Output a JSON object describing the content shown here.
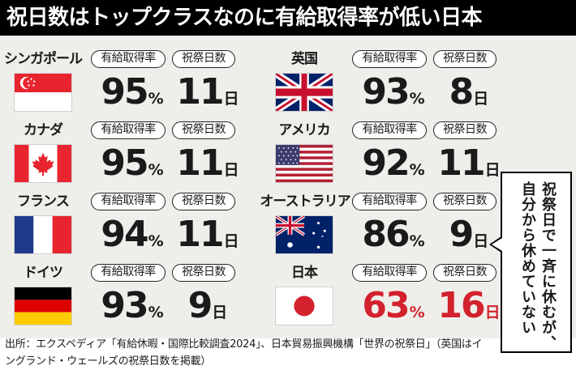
{
  "title": "祝日数はトップクラスなのに有給取得率が低い日本",
  "labels": {
    "rate": "有給取得率",
    "days": "祝祭日数",
    "rate_unit": "%",
    "days_unit": "日"
  },
  "countries": [
    {
      "name": "シンガポール",
      "flag": "singapore-flag-icon",
      "rate": "95",
      "days": "11"
    },
    {
      "name": "英国",
      "flag": "uk-flag-icon",
      "rate": "93",
      "days": "8"
    },
    {
      "name": "カナダ",
      "flag": "canada-flag-icon",
      "rate": "95",
      "days": "11"
    },
    {
      "name": "アメリカ",
      "flag": "usa-flag-icon",
      "rate": "92",
      "days": "11"
    },
    {
      "name": "フランス",
      "flag": "france-flag-icon",
      "rate": "94",
      "days": "11"
    },
    {
      "name": "オーストラリア",
      "flag": "australia-flag-icon",
      "rate": "86",
      "days": "9"
    },
    {
      "name": "ドイツ",
      "flag": "germany-flag-icon",
      "rate": "93",
      "days": "9"
    },
    {
      "name": "日本",
      "flag": "japan-flag-icon",
      "rate": "63",
      "days": "16",
      "highlight": "#d3212d"
    }
  ],
  "callout": {
    "line1": "祝祭日で一斉に休むが、",
    "line2": "自分から休めていない"
  },
  "source": "出所：エクスペディア「有給休暇・国際比較調査2024」、日本貿易振興機構「世界の祝祭日」（英国はイングランド・ウェールズの祝祭日数を掲載）"
}
